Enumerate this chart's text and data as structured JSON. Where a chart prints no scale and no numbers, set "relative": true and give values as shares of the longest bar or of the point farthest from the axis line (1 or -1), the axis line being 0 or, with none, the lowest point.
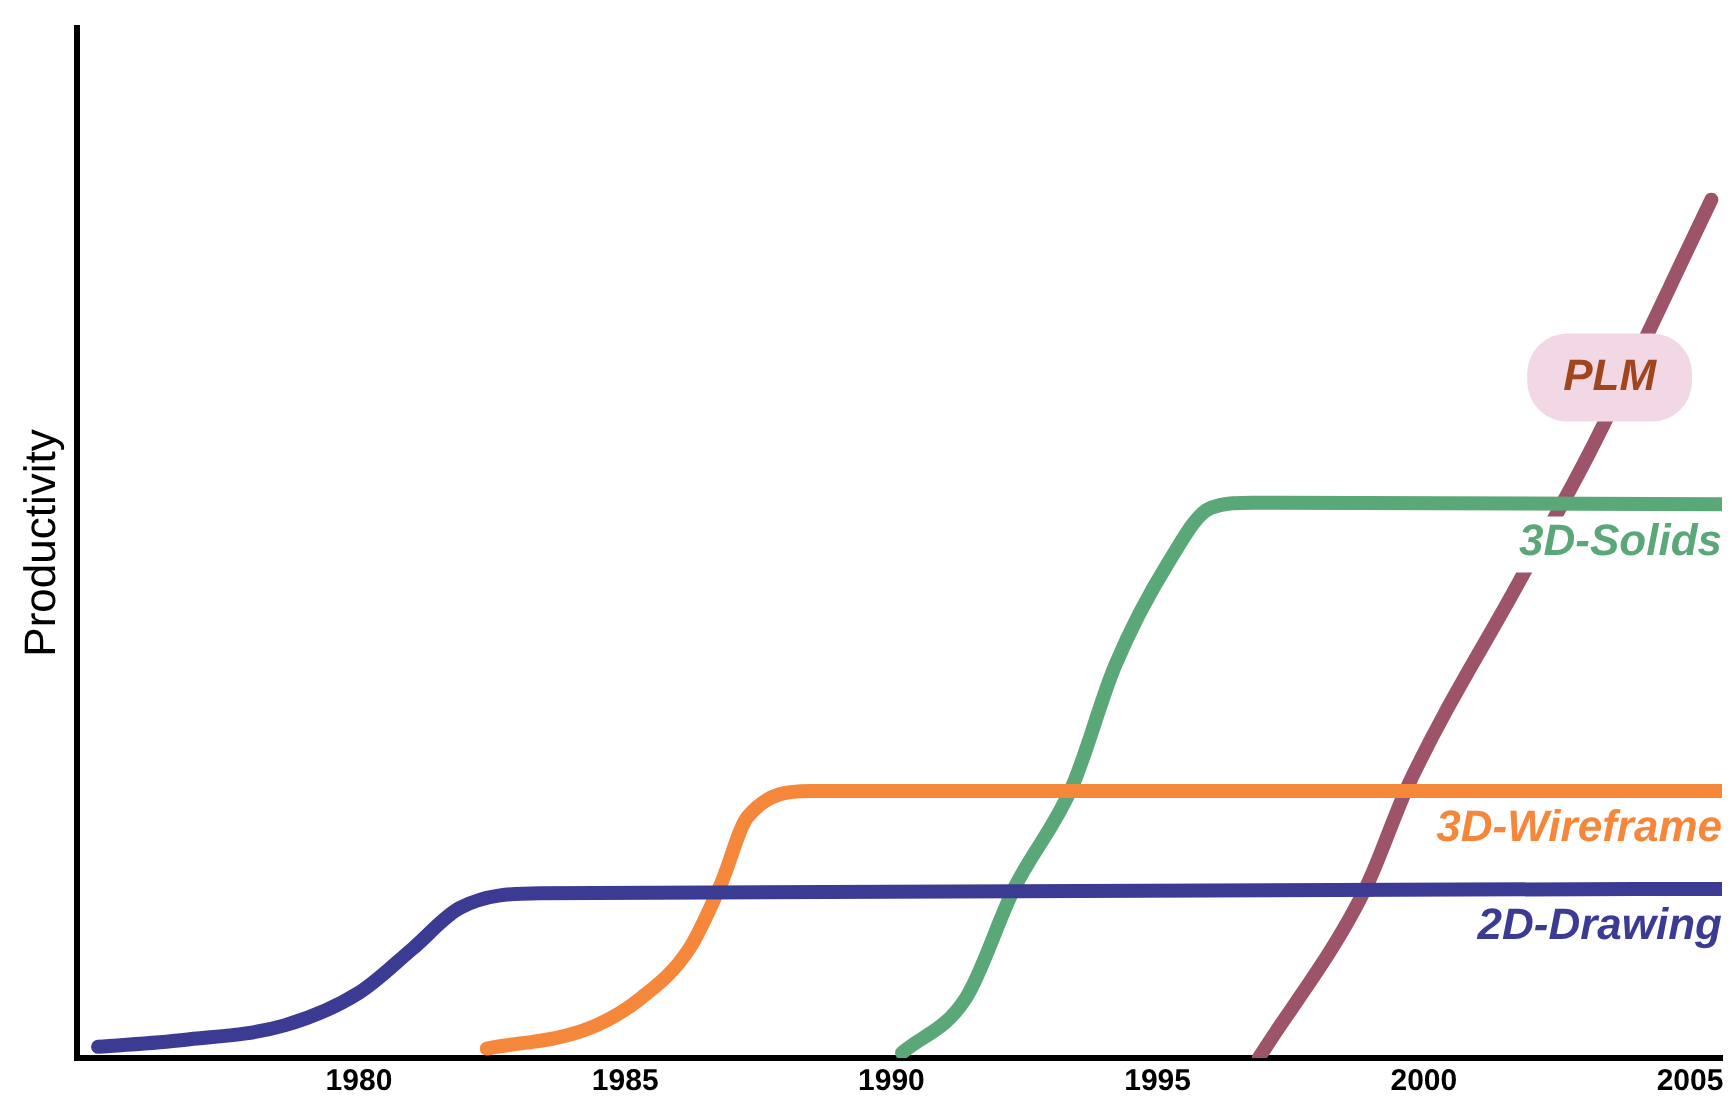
{
  "chart_data": {
    "type": "line",
    "ylabel": "Productivity",
    "relative": true,
    "grid": false,
    "legend": false,
    "marker": "none",
    "line_style": "solid",
    "xlim": [
      1974.7,
      2005.6
    ],
    "xticks": [
      1980,
      1985,
      1990,
      1995,
      2000,
      2005
    ],
    "series": [
      {
        "name": "2D-Drawing",
        "color": "#3b3b94",
        "x": [
          1975.1,
          1976.7,
          1978.6,
          1980.0,
          1981.0,
          1981.9,
          1983.4,
          2005.6
        ],
        "values": [
          0.013,
          0.021,
          0.038,
          0.076,
          0.127,
          0.175,
          0.192,
          0.197
        ]
      },
      {
        "name": "3D-Wireframe",
        "color": "#f5873a",
        "x": [
          1982.4,
          1984.3,
          1985.3,
          1986.2,
          1986.8,
          1987.3,
          1988.5,
          2005.6
        ],
        "values": [
          0.011,
          0.034,
          0.07,
          0.127,
          0.203,
          0.281,
          0.311,
          0.311
        ]
      },
      {
        "name": "3D-Solids",
        "color": "#5aa878",
        "x": [
          1990.2,
          1991.4,
          1992.3,
          1993.4,
          1994.2,
          1995.2,
          1996.0,
          1996.8,
          2005.6
        ],
        "values": [
          0.006,
          0.07,
          0.197,
          0.317,
          0.457,
          0.577,
          0.641,
          0.647,
          0.645
        ]
      },
      {
        "name": "PLM",
        "color": "#9e5468",
        "x": [
          1996.9,
          1998.9,
          1999.7,
          2001.8,
          2003.1,
          2005.4
        ],
        "values": [
          0,
          0.197,
          0.317,
          0.556,
          0.704,
          1
        ]
      }
    ]
  }
}
